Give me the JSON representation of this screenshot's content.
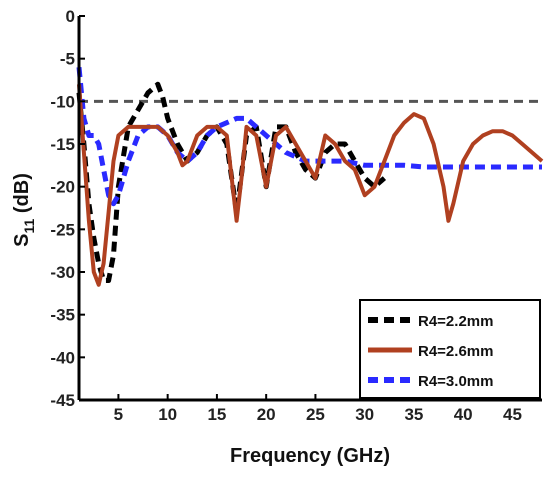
{
  "chart_data": {
    "type": "line",
    "xlabel": "Frequency (GHz)",
    "ylabel_main": "S",
    "ylabel_sub": "11",
    "ylabel_unit": " (dB)",
    "xlim": [
      1,
      48
    ],
    "ylim": [
      -45,
      0
    ],
    "x_ticks": [
      5,
      10,
      15,
      20,
      25,
      30,
      35,
      40,
      45
    ],
    "y_ticks": [
      0,
      -5,
      -10,
      -15,
      -20,
      -25,
      -30,
      -35,
      -40,
      -45
    ],
    "grid": false,
    "legend_position": "bottom-right",
    "reference_line": {
      "y": -10,
      "color": "#555555",
      "style": "dashed"
    },
    "series": [
      {
        "name": "R4=2.2mm",
        "color": "#000000",
        "style": "dashed",
        "x": [
          1,
          1.5,
          2,
          2.5,
          3,
          3.5,
          4,
          4.5,
          5,
          6,
          7,
          8,
          9,
          9.5,
          10,
          11,
          12,
          13,
          14,
          15,
          16,
          17,
          18,
          19,
          20,
          21,
          22,
          23,
          24,
          25,
          26,
          27,
          28,
          29,
          30,
          31,
          32
        ],
        "y": [
          -9,
          -15,
          -22,
          -26,
          -29,
          -31,
          -31,
          -28,
          -20,
          -13,
          -11,
          -9,
          -8,
          -9.5,
          -12,
          -15,
          -17,
          -16,
          -14,
          -13,
          -15,
          -23,
          -14,
          -13,
          -20,
          -13,
          -13,
          -16,
          -18,
          -19,
          -16,
          -15,
          -15,
          -17,
          -19,
          -20,
          -19
        ]
      },
      {
        "name": "R4=2.6mm",
        "color": "#b04020",
        "style": "solid",
        "x": [
          1,
          1.5,
          2,
          2.5,
          3,
          3.5,
          4,
          4.5,
          5,
          6,
          7,
          8,
          9,
          10,
          11,
          11.5,
          12,
          13,
          14,
          15,
          16,
          16.5,
          17,
          17.5,
          18,
          19,
          20,
          21,
          22,
          23,
          24,
          25,
          26,
          27,
          28,
          29,
          30,
          31,
          32,
          33,
          34,
          35,
          36,
          37,
          38,
          38.5,
          39,
          40,
          41,
          42,
          43,
          44,
          45,
          46,
          47,
          48
        ],
        "y": [
          -8,
          -16,
          -24,
          -30,
          -31.5,
          -29,
          -23,
          -17,
          -14,
          -13,
          -13,
          -13,
          -13,
          -14,
          -16,
          -17.5,
          -17,
          -14,
          -13,
          -13,
          -14,
          -19,
          -24,
          -19,
          -13,
          -14,
          -20,
          -14,
          -13,
          -15,
          -17,
          -19,
          -14,
          -15,
          -17,
          -18,
          -21,
          -20,
          -17,
          -14,
          -12.5,
          -11.5,
          -12,
          -15,
          -20,
          -24,
          -22,
          -17,
          -15,
          -14,
          -13.5,
          -13.5,
          -14,
          -15,
          -16,
          -17
        ]
      },
      {
        "name": "R4=3.0mm",
        "color": "#2a2aff",
        "style": "dashed",
        "x": [
          1,
          1.5,
          2,
          2.5,
          3,
          3.5,
          4,
          4.5,
          5,
          6,
          7,
          8,
          9,
          10,
          11,
          12,
          13,
          14,
          15,
          16,
          17,
          18,
          20,
          22,
          24,
          26,
          28,
          30,
          32,
          34,
          36,
          40,
          44,
          48
        ],
        "y": [
          -6,
          -12,
          -14,
          -14,
          -15,
          -18,
          -21,
          -22,
          -21,
          -17,
          -14,
          -13,
          -13,
          -14,
          -16,
          -17,
          -16,
          -14,
          -13,
          -12.5,
          -12,
          -12,
          -14,
          -16,
          -17,
          -17,
          -17,
          -17.5,
          -17.5,
          -17.5,
          -17.7,
          -17.7,
          -17.7,
          -17.7
        ]
      }
    ]
  }
}
